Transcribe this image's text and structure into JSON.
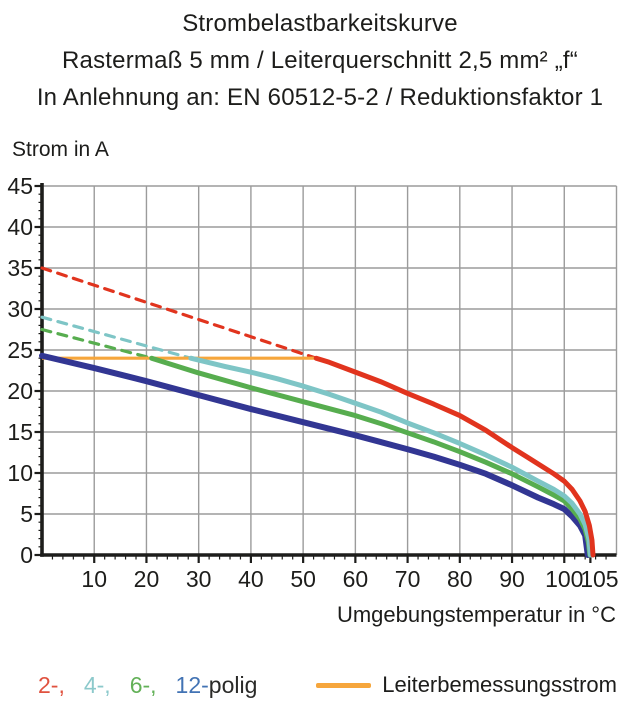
{
  "header": {
    "line1": "Strombelastbarkeitskurve",
    "line2": "Rastermaß 5 mm / Leiterquerschnitt 2,5 mm² „f“",
    "line3": "In Anlehnung an: EN 60512-5-2 / Reduktionsfaktor 1"
  },
  "colors": {
    "axis": "#1d1d1b",
    "grid": "#9b9b9b",
    "pole2": "#e1341e",
    "pole4": "#7ec5c6",
    "pole6": "#57ad4f",
    "pole12": "#323693",
    "rated": "#f6a63c"
  },
  "chart_data": {
    "type": "line",
    "title": "Strombelastbarkeitskurve",
    "xlabel": "Umgebungstemperatur in °C",
    "ylabel": "Strom in A",
    "xlim": [
      0,
      110
    ],
    "ylim": [
      0,
      45
    ],
    "grid": true,
    "x_ticks": [
      10,
      20,
      30,
      40,
      50,
      60,
      70,
      80,
      90,
      100,
      105
    ],
    "y_ticks": [
      0,
      5,
      10,
      15,
      20,
      25,
      30,
      35,
      40,
      45
    ],
    "x_grid_step": 10,
    "y_grid_step": 5,
    "x_minor_step": 2,
    "y_minor_step": 1,
    "series": [
      {
        "name": "2-polig",
        "color": "#e1341e",
        "dashed": [
          [
            0,
            35
          ],
          [
            52.5,
            24
          ]
        ],
        "solid": [
          [
            52.5,
            24
          ],
          [
            55,
            23.5
          ],
          [
            60,
            22.3
          ],
          [
            65,
            21.1
          ],
          [
            70,
            19.7
          ],
          [
            75,
            18.4
          ],
          [
            80,
            17.0
          ],
          [
            85,
            15.2
          ],
          [
            90,
            13.1
          ],
          [
            93,
            11.9
          ],
          [
            96,
            10.7
          ],
          [
            98,
            9.9
          ],
          [
            100,
            9.0
          ],
          [
            101.5,
            8.0
          ],
          [
            103,
            6.6
          ],
          [
            104,
            5.3
          ],
          [
            104.8,
            3.6
          ],
          [
            105.3,
            1.8
          ],
          [
            105.5,
            0
          ]
        ]
      },
      {
        "name": "4-polig",
        "color": "#7ec5c6",
        "dashed": [
          [
            0,
            29
          ],
          [
            28.5,
            24
          ]
        ],
        "solid": [
          [
            28.5,
            24
          ],
          [
            35,
            23.0
          ],
          [
            40,
            22.3
          ],
          [
            45,
            21.5
          ],
          [
            50,
            20.6
          ],
          [
            55,
            19.6
          ],
          [
            60,
            18.5
          ],
          [
            65,
            17.4
          ],
          [
            70,
            16.1
          ],
          [
            75,
            14.9
          ],
          [
            80,
            13.6
          ],
          [
            85,
            12.2
          ],
          [
            90,
            10.7
          ],
          [
            95,
            9.0
          ],
          [
            98,
            8.0
          ],
          [
            100,
            7.2
          ],
          [
            101.5,
            6.3
          ],
          [
            103,
            5.0
          ],
          [
            104,
            3.7
          ],
          [
            104.7,
            2.0
          ],
          [
            105,
            0
          ]
        ]
      },
      {
        "name": "6-polig",
        "color": "#57ad4f",
        "dashed": [
          [
            0,
            27.5
          ],
          [
            21,
            24
          ]
        ],
        "solid": [
          [
            21,
            24
          ],
          [
            30,
            22.2
          ],
          [
            40,
            20.4
          ],
          [
            50,
            18.7
          ],
          [
            60,
            17.0
          ],
          [
            65,
            16.0
          ],
          [
            70,
            14.9
          ],
          [
            75,
            13.8
          ],
          [
            80,
            12.6
          ],
          [
            85,
            11.3
          ],
          [
            90,
            9.9
          ],
          [
            95,
            8.3
          ],
          [
            98,
            7.3
          ],
          [
            100,
            6.6
          ],
          [
            101.5,
            5.6
          ],
          [
            103,
            4.4
          ],
          [
            104,
            3.1
          ],
          [
            104.6,
            1.6
          ],
          [
            104.9,
            0
          ]
        ]
      },
      {
        "name": "12-polig",
        "color": "#323693",
        "dashed": null,
        "solid": [
          [
            0,
            24.3
          ],
          [
            10,
            22.8
          ],
          [
            20,
            21.2
          ],
          [
            30,
            19.5
          ],
          [
            40,
            17.8
          ],
          [
            50,
            16.2
          ],
          [
            60,
            14.6
          ],
          [
            70,
            12.9
          ],
          [
            75,
            12.0
          ],
          [
            80,
            11.0
          ],
          [
            85,
            9.9
          ],
          [
            90,
            8.5
          ],
          [
            95,
            7.0
          ],
          [
            98,
            6.2
          ],
          [
            100,
            5.6
          ],
          [
            101.5,
            4.7
          ],
          [
            103,
            3.6
          ],
          [
            104,
            2.4
          ],
          [
            104.5,
            0
          ]
        ]
      }
    ],
    "reference_line": {
      "label": "Leiterbemessungsstrom",
      "color": "#f6a63c",
      "value": 24,
      "x_range": [
        0,
        52.5
      ]
    },
    "legend_position": "bottom"
  },
  "legend": {
    "items": [
      {
        "label": "2-,",
        "color": "#e0523f"
      },
      {
        "label": "4-,",
        "color": "#8cc9cb"
      },
      {
        "label": "6-,",
        "color": "#63b158"
      },
      {
        "label": "12-",
        "color": "#4273b4"
      }
    ],
    "suffix": "polig",
    "reference_label": "Leiterbemessungsstrom",
    "reference_color": "#f6a63c"
  }
}
